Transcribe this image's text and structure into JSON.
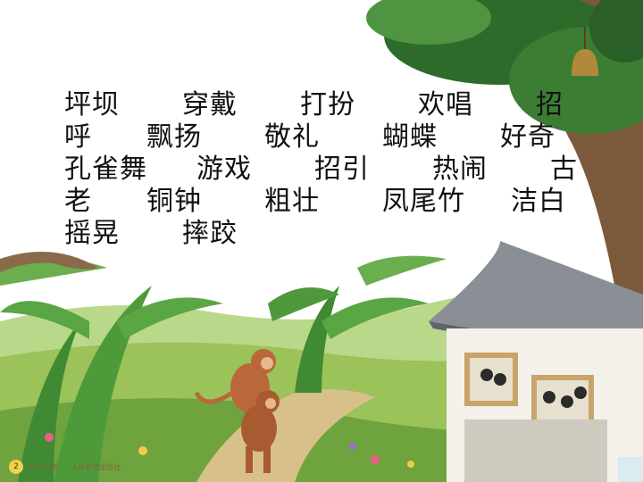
{
  "vocab": {
    "rows": [
      [
        "坪坝",
        "穿戴",
        "打扮",
        "欢唱",
        "招"
      ],
      [
        "呼",
        "飘扬",
        "敬礼",
        "蝴蝶",
        "好奇"
      ],
      [
        "孔雀舞",
        "游戏",
        "招引",
        "热闹",
        "古"
      ],
      [
        "老",
        "铜钟",
        "粗壮",
        "凤尾竹",
        "洁白"
      ],
      [
        "摇晃",
        "摔跤"
      ]
    ]
  },
  "footer": {
    "page_number": "2",
    "caption": "本文作者: ... 人民教育出版社"
  },
  "colors": {
    "sky": "#ffffff",
    "tree_dark": "#2e6b2a",
    "grass": "#9cc25a",
    "roof": "#8a8f96",
    "wall": "#f4f1ea",
    "monkey": "#b8683a"
  }
}
